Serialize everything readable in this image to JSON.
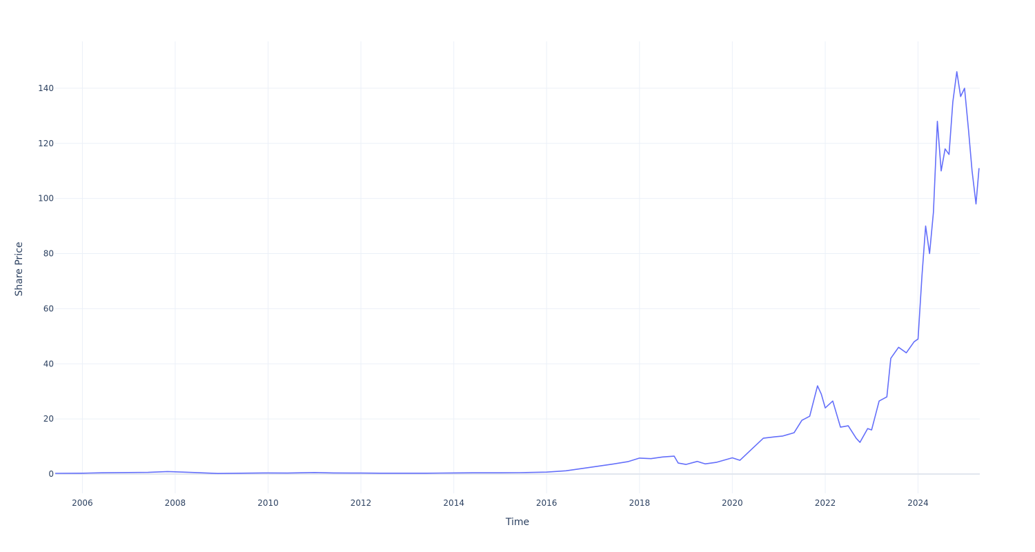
{
  "chart_data": {
    "type": "line",
    "title": "",
    "xlabel": "Time",
    "ylabel": "Share Price",
    "x_is_date": true,
    "xlim": [
      "2005-06-01",
      "2025-05-01"
    ],
    "ylim": [
      -7,
      157
    ],
    "x_ticks": [
      "2006",
      "2008",
      "2010",
      "2012",
      "2014",
      "2016",
      "2018",
      "2020",
      "2022",
      "2024"
    ],
    "y_ticks": [
      0,
      20,
      40,
      60,
      80,
      100,
      120,
      140
    ],
    "grid": true,
    "legend": "none",
    "colors": {
      "line": "#636efa",
      "grid": "#ebf0f8",
      "zeroline": "#e1e6ee",
      "text": "#2a3f5f"
    },
    "series": [
      {
        "points": [
          [
            "2005-06-01",
            0.25
          ],
          [
            "2006-01-01",
            0.3
          ],
          [
            "2006-06-01",
            0.45
          ],
          [
            "2007-01-01",
            0.55
          ],
          [
            "2007-06-01",
            0.6
          ],
          [
            "2007-11-01",
            0.9
          ],
          [
            "2008-03-01",
            0.7
          ],
          [
            "2008-06-01",
            0.55
          ],
          [
            "2008-12-01",
            0.2
          ],
          [
            "2009-06-01",
            0.3
          ],
          [
            "2010-01-01",
            0.4
          ],
          [
            "2010-06-01",
            0.35
          ],
          [
            "2011-01-01",
            0.55
          ],
          [
            "2011-06-01",
            0.4
          ],
          [
            "2012-01-01",
            0.35
          ],
          [
            "2012-06-01",
            0.3
          ],
          [
            "2013-01-01",
            0.3
          ],
          [
            "2013-06-01",
            0.32
          ],
          [
            "2014-01-01",
            0.4
          ],
          [
            "2014-06-01",
            0.45
          ],
          [
            "2015-01-01",
            0.45
          ],
          [
            "2015-06-01",
            0.5
          ],
          [
            "2016-01-01",
            0.7
          ],
          [
            "2016-06-01",
            1.2
          ],
          [
            "2017-01-01",
            2.6
          ],
          [
            "2017-06-01",
            3.6
          ],
          [
            "2017-10-01",
            4.5
          ],
          [
            "2018-01-01",
            5.8
          ],
          [
            "2018-04-01",
            5.6
          ],
          [
            "2018-07-01",
            6.2
          ],
          [
            "2018-10-01",
            6.5
          ],
          [
            "2018-11-01",
            4.0
          ],
          [
            "2019-01-01",
            3.5
          ],
          [
            "2019-04-01",
            4.6
          ],
          [
            "2019-06-01",
            3.7
          ],
          [
            "2019-09-01",
            4.3
          ],
          [
            "2020-01-01",
            5.9
          ],
          [
            "2020-03-01",
            5.0
          ],
          [
            "2020-06-01",
            9.0
          ],
          [
            "2020-09-01",
            13.0
          ],
          [
            "2020-12-01",
            13.5
          ],
          [
            "2021-02-01",
            13.8
          ],
          [
            "2021-05-01",
            15.0
          ],
          [
            "2021-07-01",
            19.5
          ],
          [
            "2021-09-01",
            21.0
          ],
          [
            "2021-11-01",
            32.0
          ],
          [
            "2021-12-01",
            29.0
          ],
          [
            "2022-01-01",
            24.0
          ],
          [
            "2022-03-01",
            26.5
          ],
          [
            "2022-05-01",
            17.0
          ],
          [
            "2022-07-01",
            17.5
          ],
          [
            "2022-09-01",
            13.0
          ],
          [
            "2022-10-01",
            11.5
          ],
          [
            "2022-12-01",
            16.5
          ],
          [
            "2023-01-01",
            16.0
          ],
          [
            "2023-03-01",
            26.5
          ],
          [
            "2023-05-01",
            28.0
          ],
          [
            "2023-06-01",
            42.0
          ],
          [
            "2023-08-01",
            46.0
          ],
          [
            "2023-10-01",
            44.0
          ],
          [
            "2023-12-01",
            48.0
          ],
          [
            "2024-01-01",
            49.0
          ],
          [
            "2024-02-01",
            72.0
          ],
          [
            "2024-03-01",
            90.0
          ],
          [
            "2024-04-01",
            80.0
          ],
          [
            "2024-05-01",
            95.0
          ],
          [
            "2024-06-01",
            128.0
          ],
          [
            "2024-07-01",
            110.0
          ],
          [
            "2024-08-01",
            118.0
          ],
          [
            "2024-09-01",
            116.0
          ],
          [
            "2024-10-01",
            135.0
          ],
          [
            "2024-11-01",
            146.0
          ],
          [
            "2024-12-01",
            137.0
          ],
          [
            "2025-01-01",
            140.0
          ],
          [
            "2025-02-01",
            125.0
          ],
          [
            "2025-03-01",
            110.0
          ],
          [
            "2025-04-01",
            98.0
          ],
          [
            "2025-04-25",
            111.0
          ]
        ]
      }
    ]
  }
}
